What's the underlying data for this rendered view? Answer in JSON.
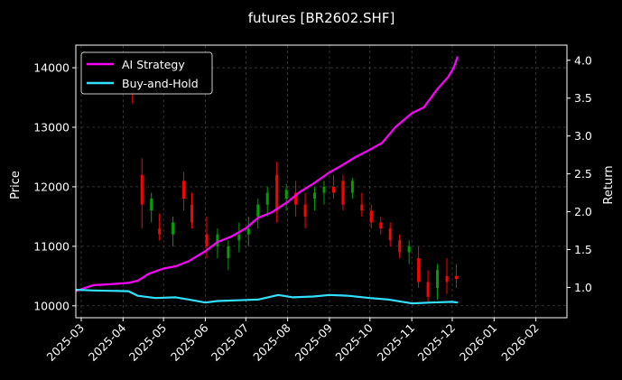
{
  "chart_data": {
    "type": "candlestick+line",
    "title": "futures [BR2602.SHF]",
    "ylabel": "Price",
    "y2label": "Return",
    "ylim": [
      9800,
      14380
    ],
    "y2lim": [
      0.6,
      4.2
    ],
    "yticks": [
      "10000",
      "11000",
      "12000",
      "13000",
      "14000"
    ],
    "y2ticks": [
      "1.0",
      "1.5",
      "2.0",
      "2.5",
      "3.0",
      "3.5",
      "4.0"
    ],
    "xlim": [
      "2025-02-25",
      "2026-02-24"
    ],
    "xticks": [
      "2025-03",
      "2025-04",
      "2025-05",
      "2025-06",
      "2025-07",
      "2025-08",
      "2025-09",
      "2025-10",
      "2025-11",
      "2025-12",
      "2026-01",
      "2026-02"
    ],
    "grid": true,
    "legend_position": "upper-left",
    "colors": {
      "background": "#000000",
      "up": "#00a000",
      "down": "#ff0000",
      "strategy": "#ff00ff",
      "buyhold": "#33e0ff",
      "grid": "#555555",
      "axis": "#ffffff"
    },
    "series": [
      {
        "name": "AI Strategy",
        "axis": "right",
        "points": [
          [
            "2025-02-25",
            0.95
          ],
          [
            "2025-03-03",
            0.99
          ],
          [
            "2025-03-10",
            1.03
          ],
          [
            "2025-03-20",
            1.04
          ],
          [
            "2025-04-05",
            1.06
          ],
          [
            "2025-04-12",
            1.09
          ],
          [
            "2025-04-20",
            1.18
          ],
          [
            "2025-05-01",
            1.25
          ],
          [
            "2025-05-10",
            1.28
          ],
          [
            "2025-05-20",
            1.35
          ],
          [
            "2025-06-01",
            1.48
          ],
          [
            "2025-06-10",
            1.6
          ],
          [
            "2025-06-20",
            1.67
          ],
          [
            "2025-07-01",
            1.78
          ],
          [
            "2025-07-10",
            1.92
          ],
          [
            "2025-07-20",
            1.99
          ],
          [
            "2025-08-01",
            2.13
          ],
          [
            "2025-08-10",
            2.26
          ],
          [
            "2025-08-20",
            2.37
          ],
          [
            "2025-09-01",
            2.52
          ],
          [
            "2025-09-10",
            2.61
          ],
          [
            "2025-09-20",
            2.72
          ],
          [
            "2025-10-01",
            2.82
          ],
          [
            "2025-10-10",
            2.91
          ],
          [
            "2025-10-20",
            3.12
          ],
          [
            "2025-11-01",
            3.3
          ],
          [
            "2025-11-10",
            3.38
          ],
          [
            "2025-11-20",
            3.62
          ],
          [
            "2025-11-28",
            3.78
          ],
          [
            "2025-12-02",
            3.9
          ],
          [
            "2025-12-05",
            4.05
          ]
        ]
      },
      {
        "name": "Buy-and-Hold",
        "axis": "right",
        "points": [
          [
            "2025-02-25",
            0.97
          ],
          [
            "2025-03-10",
            0.96
          ],
          [
            "2025-04-05",
            0.95
          ],
          [
            "2025-04-12",
            0.89
          ],
          [
            "2025-04-25",
            0.86
          ],
          [
            "2025-05-10",
            0.87
          ],
          [
            "2025-05-20",
            0.84
          ],
          [
            "2025-06-01",
            0.8
          ],
          [
            "2025-06-10",
            0.82
          ],
          [
            "2025-06-25",
            0.83
          ],
          [
            "2025-07-10",
            0.84
          ],
          [
            "2025-07-25",
            0.9
          ],
          [
            "2025-08-05",
            0.87
          ],
          [
            "2025-08-20",
            0.88
          ],
          [
            "2025-09-01",
            0.9
          ],
          [
            "2025-09-15",
            0.89
          ],
          [
            "2025-10-01",
            0.86
          ],
          [
            "2025-10-15",
            0.84
          ],
          [
            "2025-11-01",
            0.79
          ],
          [
            "2025-11-15",
            0.8
          ],
          [
            "2025-12-01",
            0.81
          ],
          [
            "2025-12-05",
            0.8
          ]
        ]
      }
    ],
    "candles": [
      [
        "2025-03-03",
        14100,
        14280,
        13950,
        14200
      ],
      [
        "2025-04-08",
        13800,
        13950,
        13400,
        13600
      ],
      [
        "2025-04-15",
        12200,
        12480,
        11300,
        11700
      ],
      [
        "2025-04-22",
        11600,
        11900,
        11400,
        11800
      ],
      [
        "2025-04-28",
        11300,
        11550,
        11100,
        11200
      ],
      [
        "2025-05-08",
        11200,
        11500,
        11000,
        11400
      ],
      [
        "2025-05-16",
        12100,
        12250,
        11600,
        11800
      ],
      [
        "2025-05-22",
        11700,
        11900,
        11300,
        11400
      ],
      [
        "2025-06-02",
        11200,
        11500,
        10800,
        11000
      ],
      [
        "2025-06-10",
        11000,
        11300,
        10800,
        11200
      ],
      [
        "2025-06-18",
        10800,
        11100,
        10600,
        11000
      ],
      [
        "2025-06-26",
        11100,
        11400,
        10900,
        11200
      ],
      [
        "2025-07-03",
        11200,
        11500,
        11000,
        11300
      ],
      [
        "2025-07-10",
        11500,
        11800,
        11300,
        11700
      ],
      [
        "2025-07-17",
        11700,
        12000,
        11500,
        11900
      ],
      [
        "2025-07-24",
        12200,
        12420,
        11400,
        11600
      ],
      [
        "2025-07-31",
        11800,
        12050,
        11600,
        11950
      ],
      [
        "2025-08-07",
        11900,
        12100,
        11500,
        11700
      ],
      [
        "2025-08-14",
        11700,
        11900,
        11300,
        11500
      ],
      [
        "2025-08-21",
        11800,
        12000,
        11600,
        11900
      ],
      [
        "2025-08-28",
        11900,
        12100,
        11700,
        12000
      ],
      [
        "2025-09-04",
        12000,
        12200,
        11800,
        11900
      ],
      [
        "2025-09-11",
        12100,
        12200,
        11600,
        11700
      ],
      [
        "2025-09-18",
        11900,
        12150,
        11800,
        12100
      ],
      [
        "2025-09-25",
        11700,
        11900,
        11500,
        11600
      ],
      [
        "2025-10-02",
        11600,
        11700,
        11300,
        11400
      ],
      [
        "2025-10-09",
        11400,
        11500,
        11200,
        11300
      ],
      [
        "2025-10-16",
        11300,
        11400,
        11000,
        11100
      ],
      [
        "2025-10-23",
        11100,
        11200,
        10800,
        10900
      ],
      [
        "2025-10-30",
        10900,
        11100,
        10700,
        11000
      ],
      [
        "2025-11-06",
        10800,
        11000,
        10300,
        10400
      ],
      [
        "2025-11-13",
        10400,
        10600,
        10050,
        10150
      ],
      [
        "2025-11-20",
        10300,
        10700,
        10100,
        10600
      ],
      [
        "2025-11-27",
        10500,
        10800,
        10200,
        10400
      ],
      [
        "2025-12-04",
        10500,
        10700,
        10300,
        10450
      ]
    ]
  }
}
